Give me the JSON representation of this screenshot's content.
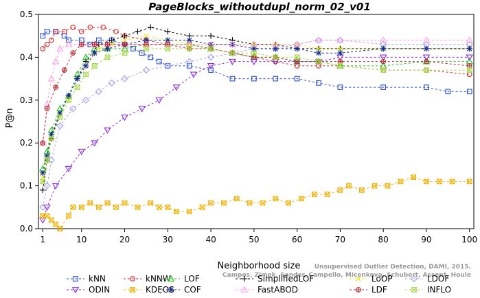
{
  "chart_data": {
    "type": "line",
    "title": "PageBlocks_withoutdupl_norm_02_v01",
    "xlabel": "Neighborhood size",
    "ylabel": "P@n",
    "xlim": [
      0,
      101
    ],
    "ylim": [
      0,
      0.5
    ],
    "xticks": [
      1,
      10,
      20,
      30,
      40,
      50,
      60,
      70,
      80,
      90,
      100
    ],
    "yticks": [
      0.0,
      0.1,
      0.2,
      0.3,
      0.4,
      0.5
    ],
    "grid": false,
    "legend_position": "bottom",
    "credit_lines": [
      "Campos, Zimek, Sander, Campello, Micenkova, Schubert, Assent, Houle",
      "Unsupervised Outlier Detection, DAMI, 2015."
    ],
    "series": [
      {
        "name": "kNN",
        "color": "#2a4fd8",
        "marker": "square",
        "points": [
          [
            1,
            0.45
          ],
          [
            2,
            0.46
          ],
          [
            4,
            0.46
          ],
          [
            6,
            0.45
          ],
          [
            7,
            0.44
          ],
          [
            10,
            0.44
          ],
          [
            12,
            0.43
          ],
          [
            14,
            0.44
          ],
          [
            17,
            0.44
          ],
          [
            20,
            0.43
          ],
          [
            22,
            0.42
          ],
          [
            24,
            0.41
          ],
          [
            26,
            0.4
          ],
          [
            28,
            0.39
          ],
          [
            30,
            0.38
          ],
          [
            35,
            0.38
          ],
          [
            40,
            0.37
          ],
          [
            45,
            0.35
          ],
          [
            50,
            0.35
          ],
          [
            55,
            0.35
          ],
          [
            60,
            0.35
          ],
          [
            65,
            0.34
          ],
          [
            70,
            0.33
          ],
          [
            80,
            0.33
          ],
          [
            90,
            0.33
          ],
          [
            95,
            0.32
          ],
          [
            100,
            0.32
          ]
        ]
      },
      {
        "name": "kNNW",
        "color": "#d42a2a",
        "marker": "circle",
        "points": [
          [
            1,
            0.42
          ],
          [
            2,
            0.43
          ],
          [
            3,
            0.44
          ],
          [
            4,
            0.46
          ],
          [
            6,
            0.46
          ],
          [
            8,
            0.47
          ],
          [
            10,
            0.46
          ],
          [
            12,
            0.47
          ],
          [
            15,
            0.47
          ],
          [
            18,
            0.46
          ],
          [
            20,
            0.45
          ],
          [
            25,
            0.44
          ],
          [
            30,
            0.43
          ],
          [
            35,
            0.43
          ],
          [
            40,
            0.42
          ],
          [
            45,
            0.41
          ],
          [
            50,
            0.4
          ],
          [
            55,
            0.39
          ],
          [
            60,
            0.38
          ],
          [
            65,
            0.38
          ],
          [
            70,
            0.38
          ],
          [
            80,
            0.37
          ],
          [
            90,
            0.37
          ],
          [
            100,
            0.36
          ]
        ]
      },
      {
        "name": "LOF",
        "color": "#1fc21f",
        "marker": "triangle-up",
        "points": [
          [
            1,
            0.14
          ],
          [
            2,
            0.18
          ],
          [
            3,
            0.23
          ],
          [
            5,
            0.28
          ],
          [
            7,
            0.31
          ],
          [
            9,
            0.36
          ],
          [
            11,
            0.4
          ],
          [
            13,
            0.42
          ],
          [
            16,
            0.42
          ],
          [
            20,
            0.42
          ],
          [
            25,
            0.43
          ],
          [
            30,
            0.43
          ],
          [
            35,
            0.43
          ],
          [
            40,
            0.42
          ],
          [
            45,
            0.41
          ],
          [
            50,
            0.4
          ],
          [
            55,
            0.4
          ],
          [
            60,
            0.39
          ],
          [
            65,
            0.39
          ],
          [
            70,
            0.38
          ],
          [
            80,
            0.38
          ],
          [
            90,
            0.39
          ],
          [
            100,
            0.39
          ]
        ]
      },
      {
        "name": "SimplifiedLOF",
        "color": "#000000",
        "marker": "plus",
        "points": [
          [
            1,
            0.09
          ],
          [
            2,
            0.16
          ],
          [
            3,
            0.21
          ],
          [
            5,
            0.27
          ],
          [
            7,
            0.31
          ],
          [
            9,
            0.35
          ],
          [
            11,
            0.39
          ],
          [
            14,
            0.43
          ],
          [
            17,
            0.44
          ],
          [
            20,
            0.45
          ],
          [
            23,
            0.46
          ],
          [
            26,
            0.47
          ],
          [
            30,
            0.46
          ],
          [
            35,
            0.45
          ],
          [
            40,
            0.45
          ],
          [
            45,
            0.44
          ],
          [
            50,
            0.43
          ],
          [
            55,
            0.43
          ],
          [
            60,
            0.42
          ],
          [
            65,
            0.42
          ],
          [
            70,
            0.42
          ],
          [
            80,
            0.42
          ],
          [
            90,
            0.42
          ],
          [
            100,
            0.42
          ]
        ]
      },
      {
        "name": "LoOP",
        "color": "#e8e820",
        "marker": "x",
        "points": [
          [
            1,
            0.12
          ],
          [
            2,
            0.17
          ],
          [
            3,
            0.22
          ],
          [
            5,
            0.27
          ],
          [
            7,
            0.31
          ],
          [
            9,
            0.35
          ],
          [
            11,
            0.38
          ],
          [
            14,
            0.42
          ],
          [
            17,
            0.43
          ],
          [
            20,
            0.44
          ],
          [
            25,
            0.45
          ],
          [
            30,
            0.44
          ],
          [
            35,
            0.43
          ],
          [
            40,
            0.43
          ],
          [
            45,
            0.43
          ],
          [
            50,
            0.43
          ],
          [
            55,
            0.43
          ],
          [
            60,
            0.43
          ],
          [
            65,
            0.42
          ],
          [
            70,
            0.42
          ],
          [
            80,
            0.42
          ],
          [
            90,
            0.42
          ],
          [
            100,
            0.42
          ]
        ]
      },
      {
        "name": "LDOF",
        "color": "#a0a0f0",
        "marker": "diamond",
        "points": [
          [
            1,
            0.05
          ],
          [
            2,
            0.1
          ],
          [
            3,
            0.16
          ],
          [
            5,
            0.24
          ],
          [
            8,
            0.28
          ],
          [
            11,
            0.3
          ],
          [
            14,
            0.32
          ],
          [
            17,
            0.34
          ],
          [
            20,
            0.35
          ],
          [
            25,
            0.37
          ],
          [
            30,
            0.38
          ],
          [
            35,
            0.39
          ],
          [
            40,
            0.4
          ],
          [
            45,
            0.41
          ],
          [
            50,
            0.42
          ],
          [
            55,
            0.42
          ],
          [
            60,
            0.43
          ],
          [
            65,
            0.44
          ],
          [
            70,
            0.44
          ],
          [
            80,
            0.43
          ],
          [
            90,
            0.43
          ],
          [
            100,
            0.43
          ]
        ]
      },
      {
        "name": "ODIN",
        "color": "#8a2be2",
        "marker": "triangle-down",
        "points": [
          [
            1,
            0.02
          ],
          [
            2,
            0.05
          ],
          [
            4,
            0.1
          ],
          [
            7,
            0.14
          ],
          [
            10,
            0.18
          ],
          [
            13,
            0.2
          ],
          [
            16,
            0.23
          ],
          [
            20,
            0.26
          ],
          [
            24,
            0.28
          ],
          [
            28,
            0.3
          ],
          [
            32,
            0.33
          ],
          [
            36,
            0.36
          ],
          [
            40,
            0.38
          ],
          [
            45,
            0.39
          ],
          [
            50,
            0.39
          ],
          [
            55,
            0.39
          ],
          [
            60,
            0.39
          ],
          [
            65,
            0.39
          ],
          [
            70,
            0.4
          ],
          [
            80,
            0.4
          ],
          [
            90,
            0.4
          ],
          [
            100,
            0.4
          ]
        ]
      },
      {
        "name": "KDEOS",
        "color": "#f0b000",
        "marker": "square-x",
        "points": [
          [
            1,
            0.03
          ],
          [
            2,
            0.03
          ],
          [
            3,
            0.02
          ],
          [
            4,
            0.01
          ],
          [
            5,
            0.0
          ],
          [
            7,
            0.03
          ],
          [
            8,
            0.05
          ],
          [
            10,
            0.05
          ],
          [
            12,
            0.06
          ],
          [
            14,
            0.05
          ],
          [
            16,
            0.06
          ],
          [
            18,
            0.05
          ],
          [
            20,
            0.06
          ],
          [
            23,
            0.05
          ],
          [
            26,
            0.06
          ],
          [
            28,
            0.05
          ],
          [
            30,
            0.05
          ],
          [
            32,
            0.04
          ],
          [
            35,
            0.04
          ],
          [
            38,
            0.05
          ],
          [
            40,
            0.06
          ],
          [
            43,
            0.06
          ],
          [
            46,
            0.07
          ],
          [
            49,
            0.06
          ],
          [
            52,
            0.06
          ],
          [
            55,
            0.07
          ],
          [
            58,
            0.06
          ],
          [
            61,
            0.07
          ],
          [
            64,
            0.08
          ],
          [
            67,
            0.08
          ],
          [
            70,
            0.09
          ],
          [
            72,
            0.1
          ],
          [
            75,
            0.09
          ],
          [
            78,
            0.1
          ],
          [
            81,
            0.1
          ],
          [
            84,
            0.11
          ],
          [
            87,
            0.12
          ],
          [
            90,
            0.11
          ],
          [
            93,
            0.11
          ],
          [
            96,
            0.11
          ],
          [
            100,
            0.11
          ]
        ]
      },
      {
        "name": "COF",
        "color": "#102a8a",
        "marker": "asterisk",
        "points": [
          [
            1,
            0.13
          ],
          [
            2,
            0.17
          ],
          [
            3,
            0.22
          ],
          [
            5,
            0.27
          ],
          [
            7,
            0.31
          ],
          [
            9,
            0.35
          ],
          [
            11,
            0.38
          ],
          [
            13,
            0.41
          ],
          [
            16,
            0.42
          ],
          [
            20,
            0.43
          ],
          [
            25,
            0.44
          ],
          [
            30,
            0.44
          ],
          [
            35,
            0.44
          ],
          [
            40,
            0.43
          ],
          [
            45,
            0.43
          ],
          [
            50,
            0.42
          ],
          [
            55,
            0.42
          ],
          [
            60,
            0.42
          ],
          [
            65,
            0.41
          ],
          [
            70,
            0.41
          ],
          [
            80,
            0.42
          ],
          [
            90,
            0.42
          ],
          [
            100,
            0.42
          ]
        ]
      },
      {
        "name": "FastABOD",
        "color": "#ff9ee6",
        "marker": "triangle-up",
        "points": [
          [
            1,
            0.2
          ],
          [
            2,
            0.29
          ],
          [
            3,
            0.35
          ],
          [
            4,
            0.39
          ],
          [
            5,
            0.42
          ],
          [
            7,
            0.43
          ],
          [
            10,
            0.43
          ],
          [
            13,
            0.43
          ],
          [
            16,
            0.43
          ],
          [
            20,
            0.43
          ],
          [
            25,
            0.43
          ],
          [
            30,
            0.43
          ],
          [
            35,
            0.43
          ],
          [
            40,
            0.43
          ],
          [
            45,
            0.43
          ],
          [
            50,
            0.43
          ],
          [
            55,
            0.43
          ],
          [
            60,
            0.43
          ],
          [
            65,
            0.44
          ],
          [
            70,
            0.44
          ],
          [
            80,
            0.44
          ],
          [
            90,
            0.44
          ],
          [
            100,
            0.44
          ]
        ]
      },
      {
        "name": "LDF",
        "color": "#b5282f",
        "marker": "circle-plus",
        "points": [
          [
            1,
            0.2
          ],
          [
            2,
            0.28
          ],
          [
            4,
            0.33
          ],
          [
            6,
            0.37
          ],
          [
            8,
            0.41
          ],
          [
            10,
            0.43
          ],
          [
            13,
            0.43
          ],
          [
            16,
            0.43
          ],
          [
            20,
            0.43
          ],
          [
            25,
            0.43
          ],
          [
            30,
            0.43
          ],
          [
            35,
            0.42
          ],
          [
            40,
            0.42
          ],
          [
            45,
            0.41
          ],
          [
            50,
            0.4
          ],
          [
            55,
            0.4
          ],
          [
            60,
            0.39
          ],
          [
            65,
            0.39
          ],
          [
            70,
            0.39
          ],
          [
            80,
            0.39
          ],
          [
            90,
            0.39
          ],
          [
            100,
            0.38
          ]
        ]
      },
      {
        "name": "INFLO",
        "color": "#a8d84a",
        "marker": "square-x",
        "points": [
          [
            1,
            0.11
          ],
          [
            2,
            0.16
          ],
          [
            3,
            0.21
          ],
          [
            5,
            0.26
          ],
          [
            7,
            0.3
          ],
          [
            9,
            0.33
          ],
          [
            11,
            0.36
          ],
          [
            13,
            0.38
          ],
          [
            16,
            0.4
          ],
          [
            20,
            0.41
          ],
          [
            25,
            0.42
          ],
          [
            30,
            0.42
          ],
          [
            35,
            0.42
          ],
          [
            40,
            0.42
          ],
          [
            45,
            0.41
          ],
          [
            50,
            0.41
          ],
          [
            55,
            0.4
          ],
          [
            60,
            0.4
          ],
          [
            65,
            0.39
          ],
          [
            70,
            0.38
          ],
          [
            80,
            0.37
          ],
          [
            90,
            0.37
          ],
          [
            100,
            0.37
          ]
        ]
      }
    ]
  },
  "legend_rows": [
    [
      "kNN",
      "kNNW",
      "LOF",
      "SimplifiedLOF",
      "LoOP",
      "LDOF"
    ],
    [
      "ODIN",
      "KDEOS",
      "COF",
      "FastABOD",
      "LDF",
      "INFLO"
    ]
  ]
}
